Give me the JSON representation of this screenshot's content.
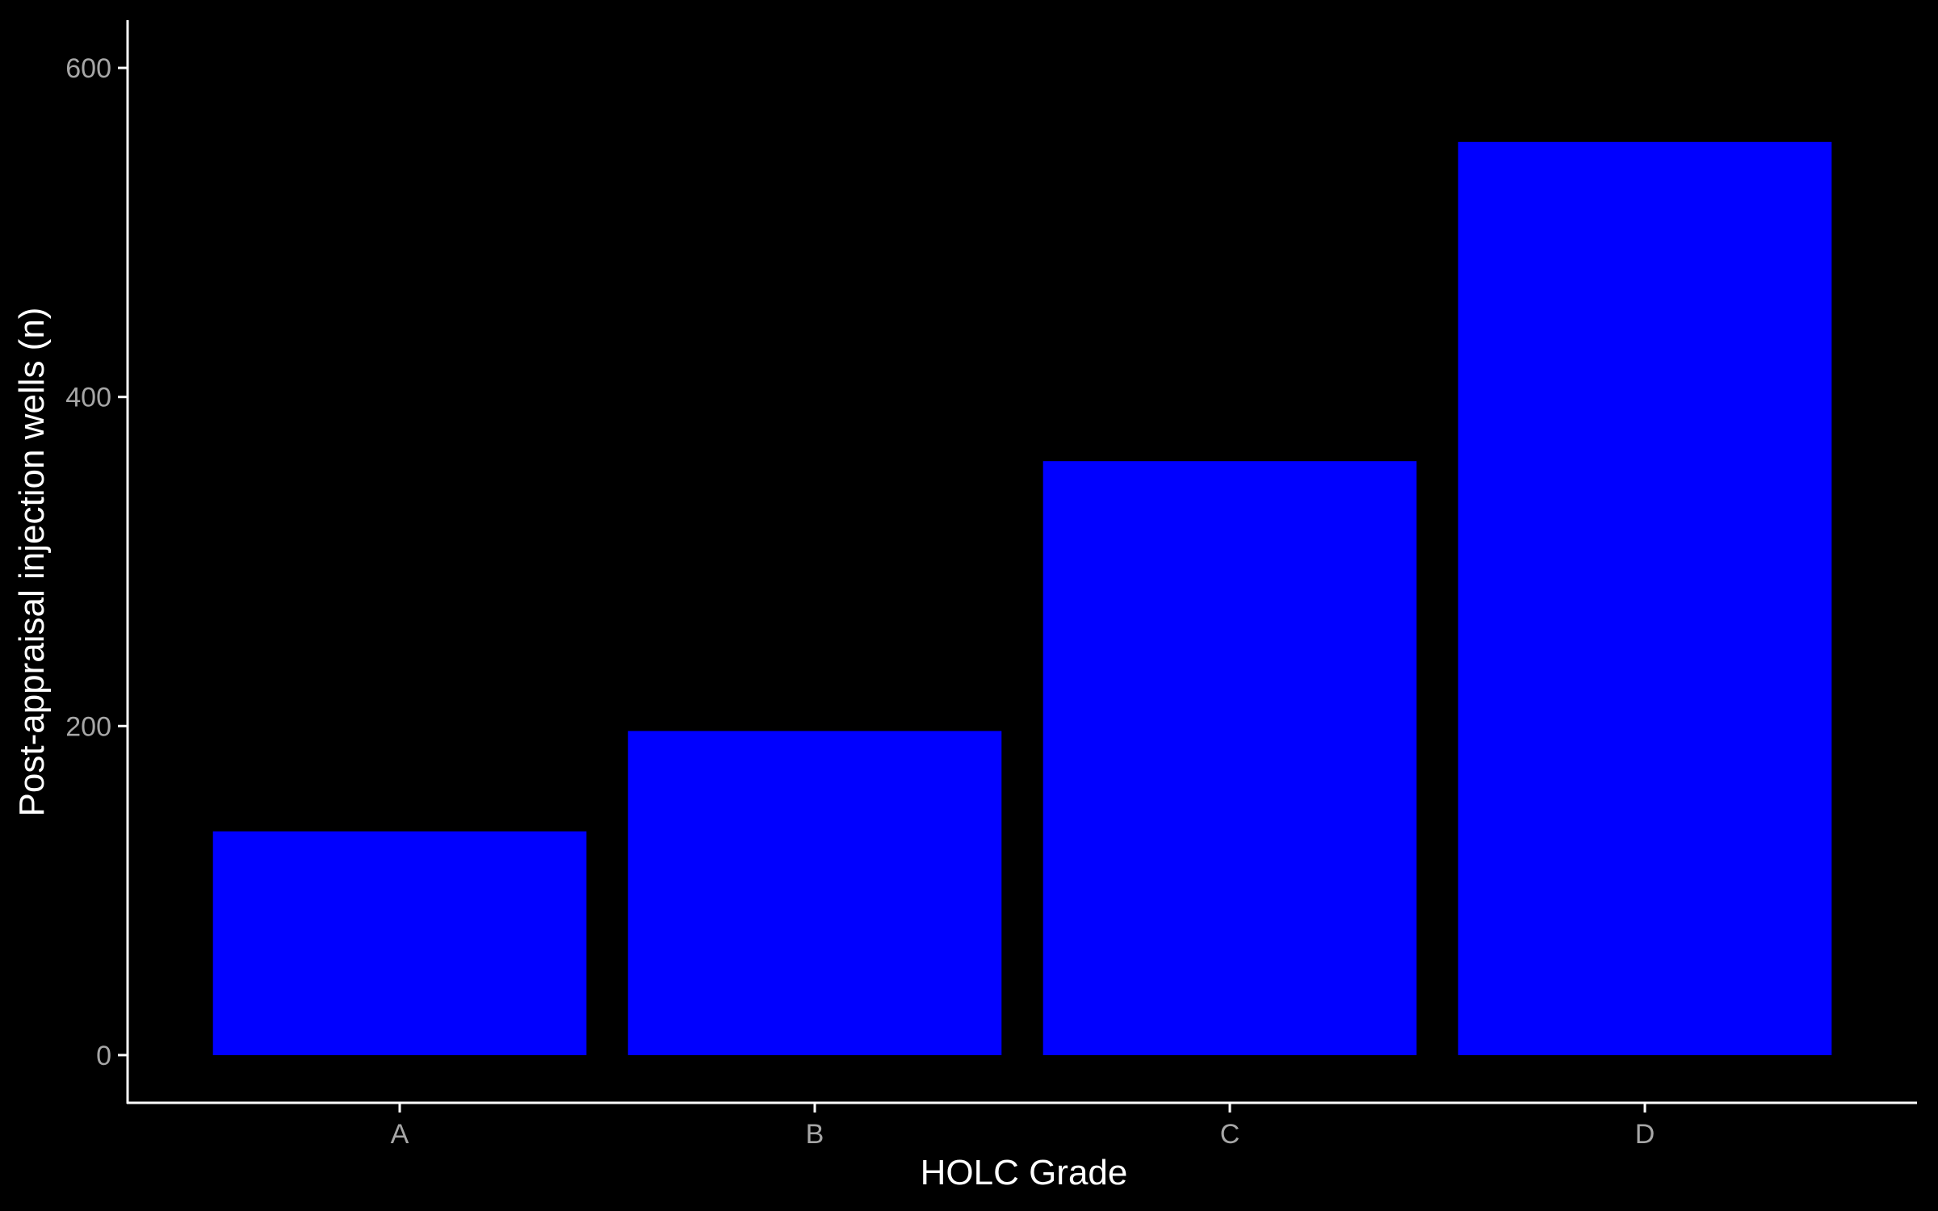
{
  "chart_data": {
    "type": "bar",
    "title": "",
    "xlabel": "HOLC Grade",
    "ylabel": "Post-appraisal injection wells (n)",
    "categories": [
      "A",
      "B",
      "C",
      "D"
    ],
    "values": [
      136,
      197,
      361,
      555
    ],
    "ylim": [
      -29,
      629
    ],
    "yticks": [
      0,
      200,
      400,
      600
    ],
    "grid": false,
    "legend": "none",
    "colors": {
      "background": "#000000",
      "bar": "#0000ff",
      "axis": "#ffffff",
      "tick_label": "#a6a6a6",
      "axis_title": "#ffffff"
    }
  }
}
